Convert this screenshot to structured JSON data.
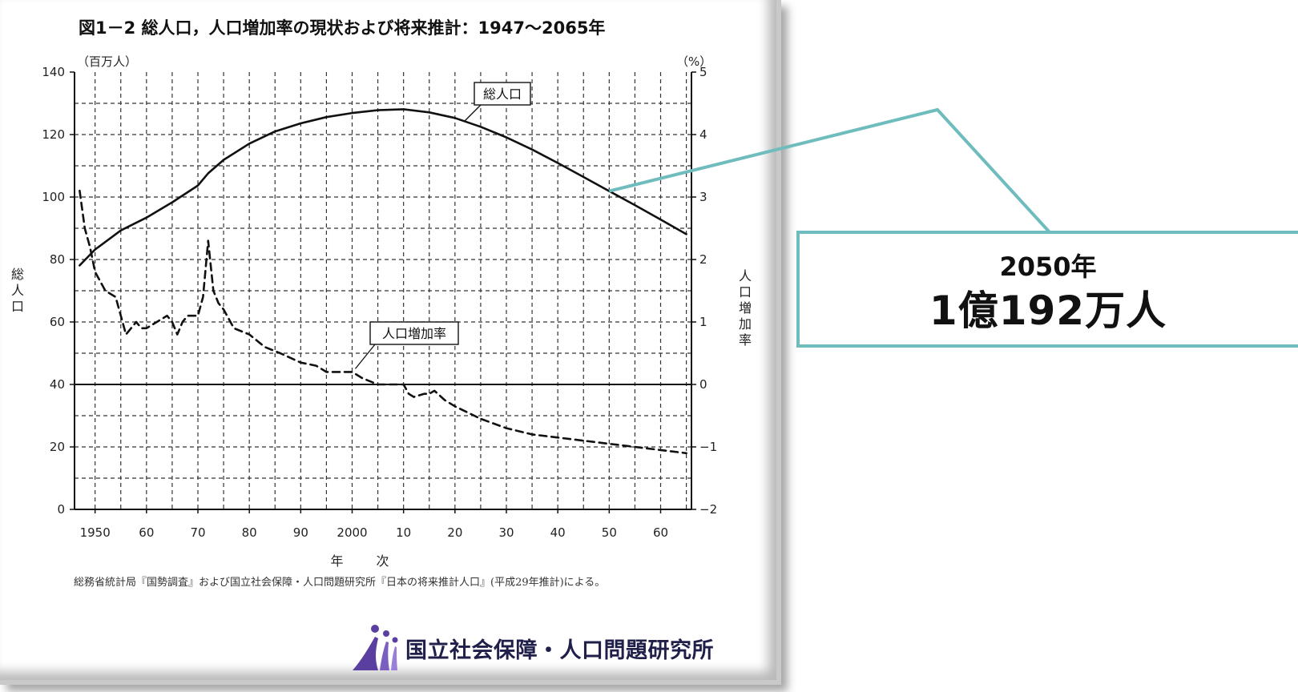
{
  "chart_data": {
    "type": "line",
    "title": "図1－2 総人口，人口増加率の現状および将来推計：1947～2065年",
    "xlabel": "年 次",
    "ylabel_left": "総人口",
    "ylabel_right": "人口増加率",
    "left_unit": "（百万人）",
    "right_unit": "（%）",
    "xlim": [
      1946,
      2066
    ],
    "ylim_left": [
      0,
      140
    ],
    "ylim_right": [
      -2,
      5
    ],
    "x_ticks": [
      1950,
      1960,
      1970,
      1980,
      1990,
      2000,
      2010,
      2020,
      2030,
      2040,
      2050,
      2060
    ],
    "x_tick_labels": [
      "1950",
      "60",
      "70",
      "80",
      "90",
      "2000",
      "10",
      "20",
      "30",
      "40",
      "50",
      "60"
    ],
    "left_ticks": [
      "0",
      "20",
      "40",
      "60",
      "80",
      "100",
      "120",
      "140"
    ],
    "right_ticks": [
      "−2",
      "−1",
      "0",
      "1",
      "2",
      "3",
      "4",
      "5"
    ],
    "grid": true,
    "series": [
      {
        "name": "総人口",
        "axis": "left",
        "style": "solid",
        "x": [
          1947,
          1950,
          1955,
          1960,
          1965,
          1970,
          1972,
          1975,
          1980,
          1985,
          1990,
          1995,
          2000,
          2005,
          2010,
          2015,
          2020,
          2025,
          2030,
          2035,
          2040,
          2045,
          2050,
          2055,
          2060,
          2065
        ],
        "values": [
          78.1,
          83.2,
          89.3,
          93.4,
          98.3,
          103.7,
          107.6,
          111.9,
          117.1,
          121.0,
          123.6,
          125.6,
          126.9,
          127.8,
          128.1,
          127.1,
          125.3,
          122.5,
          119.1,
          115.2,
          110.9,
          106.4,
          101.9,
          97.4,
          92.8,
          88.1
        ]
      },
      {
        "name": "人口増加率",
        "axis": "right",
        "style": "dashed",
        "x": [
          1947,
          1948,
          1949,
          1950,
          1952,
          1954,
          1955,
          1956,
          1957,
          1958,
          1959,
          1960,
          1962,
          1964,
          1965,
          1966,
          1967,
          1968,
          1970,
          1971,
          1972,
          1973,
          1974,
          1975,
          1977,
          1980,
          1983,
          1986,
          1990,
          1993,
          1995,
          1998,
          2000,
          2002,
          2005,
          2008,
          2010,
          2011,
          2012,
          2014,
          2015,
          2016,
          2018,
          2020,
          2025,
          2030,
          2035,
          2040,
          2045,
          2050,
          2055,
          2060,
          2065
        ],
        "values": [
          3.1,
          2.5,
          2.2,
          1.8,
          1.5,
          1.4,
          1.1,
          0.8,
          0.9,
          1.0,
          0.9,
          0.9,
          1.0,
          1.1,
          1.0,
          0.8,
          1.0,
          1.1,
          1.1,
          1.4,
          2.3,
          1.5,
          1.3,
          1.2,
          0.9,
          0.8,
          0.6,
          0.5,
          0.35,
          0.3,
          0.2,
          0.2,
          0.2,
          0.1,
          0.0,
          0.0,
          0.0,
          -0.15,
          -0.2,
          -0.15,
          -0.15,
          -0.1,
          -0.25,
          -0.35,
          -0.55,
          -0.7,
          -0.8,
          -0.85,
          -0.9,
          -0.95,
          -1.0,
          -1.05,
          -1.1
        ]
      }
    ],
    "annotations": [
      {
        "text": "総人口",
        "x": 2013,
        "y_left": 128.1
      },
      {
        "text": "人口増加率",
        "x": 2000,
        "y_right": 0.2
      }
    ]
  },
  "source_note": "総務省統計局『国勢調査』および国立社会保障・人口問題研究所『日本の将来推計人口』(平成29年推計)による。",
  "logo_text": "国立社会保障・人口問題研究所",
  "callout": {
    "year": "2050年",
    "value": "1億192万人",
    "x": 2050,
    "y_left": 101.9
  },
  "colors": {
    "callout_border": "#6fbcbf",
    "logo_dark": "#1f1f4a",
    "logo_accent": "#5a3fa0"
  }
}
